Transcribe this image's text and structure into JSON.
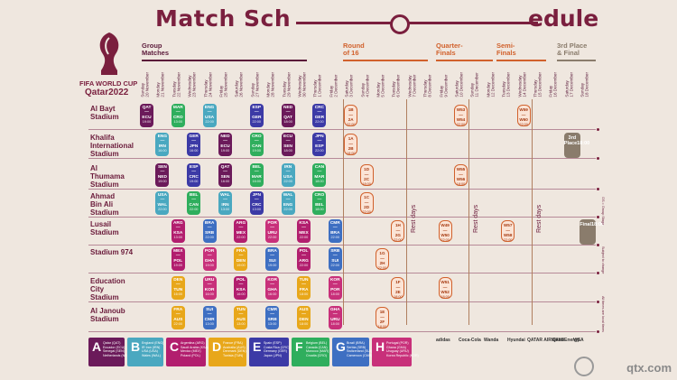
{
  "title": {
    "left": "Match Sch",
    "right": "edule"
  },
  "brand": {
    "line1": "FIFA WORLD CUP",
    "line2": "Qatar2022"
  },
  "phases": [
    {
      "key": "group",
      "label": "Group\nMatches",
      "color": "#5b1a3a"
    },
    {
      "key": "r16",
      "label": "Round\nof 16",
      "color": "#d1612c"
    },
    {
      "key": "qf",
      "label": "Quarter-\nFinals",
      "color": "#d1612c"
    },
    {
      "key": "sf",
      "label": "Semi-\nFinals",
      "color": "#d1612c"
    },
    {
      "key": "final",
      "label": "3rd Place\n& Final",
      "color": "#8a7c6c"
    }
  ],
  "dates": [
    "Sunday\n20 November",
    "Monday\n21 November",
    "Tuesday\n22 November",
    "Wednesday\n23 November",
    "Thursday\n24 November",
    "Friday\n25 November",
    "Saturday\n26 November",
    "Sunday\n27 November",
    "Monday\n28 November",
    "Tuesday\n29 November",
    "Wednesday\n30 November",
    "Thursday\n1 December",
    "Friday\n2 December",
    "Saturday\n3 December",
    "Sunday\n4 December",
    "Monday\n5 December",
    "Tuesday\n6 December",
    "Wednesday\n7 December",
    "Thursday\n8 December",
    "Friday\n9 December",
    "Saturday\n10 December",
    "Sunday\n11 December",
    "Monday\n12 December",
    "Tuesday\n13 December",
    "Wednesday\n14 December",
    "Thursday\n15 December",
    "Friday\n16 December",
    "Saturday\n17 December",
    "Sunday\n18 December"
  ],
  "venues": [
    "Al Bayt\nStadium",
    "Khalifa\nInternational\nStadium",
    "Al\nThumama\nStadium",
    "Ahmad\nBin Ali\nStadium",
    "Lusail\nStadium",
    "Stadium 974",
    "Education\nCity\nStadium",
    "Al Janoub\nStadium"
  ],
  "group_colors": {
    "A": "#6b1a5a",
    "B": "#4aa8c0",
    "C": "#b21e6e",
    "D": "#e8a71a",
    "E": "#3c3aa6",
    "F": "#2fae5d",
    "G": "#3e6fc2",
    "H": "#c8307a"
  },
  "matches": [
    {
      "row": 0,
      "col": 0,
      "t": "QAT\n—\nECU",
      "k": "19:00",
      "g": "A"
    },
    {
      "row": 0,
      "col": 2,
      "t": "MAR\n—\nCRO",
      "k": "13:00",
      "g": "F"
    },
    {
      "row": 0,
      "col": 4,
      "t": "ENG\n—\nUSA",
      "k": "22:00",
      "g": "B"
    },
    {
      "row": 0,
      "col": 7,
      "t": "ESP\n—\nGER",
      "k": "22:00",
      "g": "E"
    },
    {
      "row": 0,
      "col": 9,
      "t": "NED\n—\nQAT",
      "k": "18:00",
      "g": "A"
    },
    {
      "row": 0,
      "col": 11,
      "t": "CRC\n—\nGER",
      "k": "22:00",
      "g": "E"
    },
    {
      "row": 1,
      "col": 1,
      "t": "ENG\n—\nIRN",
      "k": "16:00",
      "g": "B"
    },
    {
      "row": 1,
      "col": 3,
      "t": "GER\n—\nJPN",
      "k": "16:00",
      "g": "E"
    },
    {
      "row": 1,
      "col": 5,
      "t": "NED\n—\nECU",
      "k": "19:00",
      "g": "A"
    },
    {
      "row": 1,
      "col": 7,
      "t": "CRO\n—\nCAN",
      "k": "19:00",
      "g": "F"
    },
    {
      "row": 1,
      "col": 9,
      "t": "ECU\n—\nSEN",
      "k": "18:00",
      "g": "A"
    },
    {
      "row": 1,
      "col": 11,
      "t": "JPN\n—\nESP",
      "k": "22:00",
      "g": "E"
    },
    {
      "row": 2,
      "col": 1,
      "t": "SEN\n—\nNED",
      "k": "19:00",
      "g": "A"
    },
    {
      "row": 2,
      "col": 3,
      "t": "ESP\n—\nCRC",
      "k": "19:00",
      "g": "E"
    },
    {
      "row": 2,
      "col": 5,
      "t": "QAT\n—\nSEN",
      "k": "16:00",
      "g": "A"
    },
    {
      "row": 2,
      "col": 7,
      "t": "BEL\n—\nMAR",
      "k": "16:00",
      "g": "F"
    },
    {
      "row": 2,
      "col": 9,
      "t": "IRN\n—\nUSA",
      "k": "22:00",
      "g": "B"
    },
    {
      "row": 2,
      "col": 11,
      "t": "CAN\n—\nMAR",
      "k": "18:00",
      "g": "F"
    },
    {
      "row": 3,
      "col": 1,
      "t": "USA\n—\nWAL",
      "k": "22:00",
      "g": "B"
    },
    {
      "row": 3,
      "col": 3,
      "t": "BEL\n—\nCAN",
      "k": "22:00",
      "g": "F"
    },
    {
      "row": 3,
      "col": 5,
      "t": "WAL\n—\nIRN",
      "k": "13:00",
      "g": "B"
    },
    {
      "row": 3,
      "col": 7,
      "t": "JPN\n—\nCRC",
      "k": "13:00",
      "g": "E"
    },
    {
      "row": 3,
      "col": 9,
      "t": "WAL\n—\nENG",
      "k": "22:00",
      "g": "B"
    },
    {
      "row": 3,
      "col": 11,
      "t": "CRO\n—\nBEL",
      "k": "18:00",
      "g": "F"
    },
    {
      "row": 4,
      "col": 2,
      "t": "ARG\n—\nKSA",
      "k": "13:00",
      "g": "C"
    },
    {
      "row": 4,
      "col": 4,
      "t": "BRA\n—\nSRB",
      "k": "22:00",
      "g": "G"
    },
    {
      "row": 4,
      "col": 6,
      "t": "ARG\n—\nMEX",
      "k": "22:00",
      "g": "C"
    },
    {
      "row": 4,
      "col": 8,
      "t": "POR\n—\nURU",
      "k": "22:00",
      "g": "H"
    },
    {
      "row": 4,
      "col": 10,
      "t": "KSA\n—\nMEX",
      "k": "22:00",
      "g": "C"
    },
    {
      "row": 4,
      "col": 12,
      "t": "CMR\n—\nBRA",
      "k": "22:00",
      "g": "G"
    },
    {
      "row": 5,
      "col": 2,
      "t": "MEX\n—\nPOL",
      "k": "19:00",
      "g": "C"
    },
    {
      "row": 5,
      "col": 4,
      "t": "POR\n—\nGHA",
      "k": "19:00",
      "g": "H"
    },
    {
      "row": 5,
      "col": 6,
      "t": "FRA\n—\nDEN",
      "k": "19:00",
      "g": "D"
    },
    {
      "row": 5,
      "col": 8,
      "t": "BRA\n—\nSUI",
      "k": "19:00",
      "g": "G"
    },
    {
      "row": 5,
      "col": 10,
      "t": "POL\n—\nARG",
      "k": "22:00",
      "g": "C"
    },
    {
      "row": 5,
      "col": 12,
      "t": "SRB\n—\nSUI",
      "k": "22:00",
      "g": "G"
    },
    {
      "row": 6,
      "col": 2,
      "t": "DEN\n—\nTUN",
      "k": "16:00",
      "g": "D"
    },
    {
      "row": 6,
      "col": 4,
      "t": "URU\n—\nKOR",
      "k": "16:00",
      "g": "H"
    },
    {
      "row": 6,
      "col": 6,
      "t": "POL\n—\nKSA",
      "k": "16:00",
      "g": "C"
    },
    {
      "row": 6,
      "col": 8,
      "t": "KOR\n—\nGHA",
      "k": "16:00",
      "g": "H"
    },
    {
      "row": 6,
      "col": 10,
      "t": "TUN\n—\nFRA",
      "k": "18:00",
      "g": "D"
    },
    {
      "row": 6,
      "col": 12,
      "t": "KOR\n—\nPOR",
      "k": "18:00",
      "g": "H"
    },
    {
      "row": 7,
      "col": 2,
      "t": "FRA\n—\nAUS",
      "k": "22:00",
      "g": "D"
    },
    {
      "row": 7,
      "col": 4,
      "t": "SUI\n—\nCMR",
      "k": "13:00",
      "g": "G"
    },
    {
      "row": 7,
      "col": 6,
      "t": "TUN\n—\nAUS",
      "k": "13:00",
      "g": "D"
    },
    {
      "row": 7,
      "col": 8,
      "t": "CMR\n—\nSRB",
      "k": "13:00",
      "g": "G"
    },
    {
      "row": 7,
      "col": 10,
      "t": "AUS\n—\nDEN",
      "k": "18:00",
      "g": "D"
    },
    {
      "row": 7,
      "col": 12,
      "t": "GHA\n—\nURU",
      "k": "18:00",
      "g": "H"
    }
  ],
  "knockouts": [
    {
      "row": 0,
      "col": 13,
      "t": "1B\n—\n2A",
      "k": "22:00"
    },
    {
      "row": 1,
      "col": 13,
      "t": "1A\n—\n2B",
      "k": "18:00"
    },
    {
      "row": 2,
      "col": 14,
      "t": "1D\n—\n2C",
      "k": "18:00"
    },
    {
      "row": 3,
      "col": 14,
      "t": "1C\n—\n2D",
      "k": "22:00"
    },
    {
      "row": 4,
      "col": 16,
      "t": "1H\n—\n2G",
      "k": "22:00"
    },
    {
      "row": 5,
      "col": 15,
      "t": "1G\n—\n2H",
      "k": "22:00"
    },
    {
      "row": 6,
      "col": 16,
      "t": "1F\n—\n2E",
      "k": "18:00"
    },
    {
      "row": 7,
      "col": 15,
      "t": "1E\n—\n2F",
      "k": "18:00"
    },
    {
      "row": 0,
      "col": 20,
      "t": "W53\n—\nW54",
      "k": "22:00"
    },
    {
      "row": 2,
      "col": 20,
      "t": "W55\n—\nW56",
      "k": "18:00"
    },
    {
      "row": 4,
      "col": 19,
      "t": "W49\n—\nW50",
      "k": "22:00"
    },
    {
      "row": 6,
      "col": 19,
      "t": "W51\n—\nW52",
      "k": "18:00"
    },
    {
      "row": 0,
      "col": 24,
      "t": "W59\n—\nW60",
      "k": "22:00"
    },
    {
      "row": 4,
      "col": 23,
      "t": "W57\n—\nW58",
      "k": "22:00"
    }
  ],
  "finals": [
    {
      "row": 1,
      "col": 27,
      "t": "3rd\nPlace",
      "k": "18:00"
    },
    {
      "row": 4,
      "col": 28,
      "t": "Final",
      "k": "18:00"
    }
  ],
  "rest_days": [
    {
      "col": 17,
      "label": "Rest days"
    },
    {
      "col": 21,
      "label": "Rest days"
    },
    {
      "col": 25,
      "label": "Rest days"
    }
  ],
  "groups": [
    {
      "l": "A",
      "m": "Qatar (QAT)\nEcuador (ECU)\nSenegal (SEN)\nNetherlands (NED)"
    },
    {
      "l": "B",
      "m": "England (ENG)\nIR Iran (IRN)\nUSA (USA)\nWales (WAL)"
    },
    {
      "l": "C",
      "m": "Argentina (ARG)\nSaudi Arabia (KSA)\nMexico (MEX)\nPoland (POL)"
    },
    {
      "l": "D",
      "m": "France (FRA)\nAustralia (AUS)\nDenmark (DEN)\nTunisia (TUN)"
    },
    {
      "l": "E",
      "m": "Spain (ESP)\nCosta Rica (CRC)\nGermany (GER)\nJapan (JPN)"
    },
    {
      "l": "F",
      "m": "Belgium (BEL)\nCanada (CAN)\nMorocco (MAR)\nCroatia (CRO)"
    },
    {
      "l": "G",
      "m": "Brazil (BRA)\nSerbia (SRB)\nSwitzerland (SUI)\nCameroon (CMR)"
    },
    {
      "l": "H",
      "m": "Portugal (POR)\nGhana (GHA)\nUruguay (URU)\nKorea Republic (KOR)"
    }
  ],
  "sponsors": [
    "adidas",
    "Coca-Cola",
    "Wanda",
    "Hyundai",
    "QATAR AIRWAYS",
    "QatarEnergy",
    "VISA"
  ],
  "side_notes": [
    "GS = Group Stage",
    "Subject to change",
    "All times are local times"
  ],
  "watermark": "qtx.com"
}
